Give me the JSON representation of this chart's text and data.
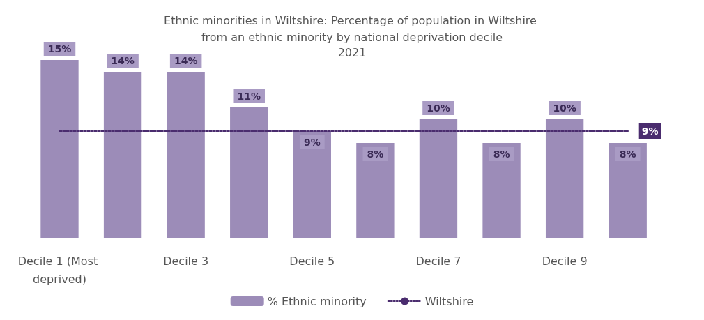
{
  "chart_data": {
    "type": "bar",
    "title": "Ethnic minorities in Wiltshire: Percentage of population in Wiltshire from an ethnic minority by national deprivation decile",
    "subtitle": "2021",
    "categories": [
      "Decile 1 (Most deprived)",
      null,
      "Decile 3",
      null,
      "Decile 5",
      null,
      "Decile 7",
      null,
      "Decile 9",
      null
    ],
    "series": [
      {
        "name": "% Ethnic minority",
        "color": "#9c8cb8",
        "values": [
          15,
          14,
          14,
          11,
          9,
          8,
          10,
          8,
          10,
          8
        ],
        "value_labels": [
          "15%",
          "14%",
          "14%",
          "11%",
          "9%",
          "8%",
          "10%",
          "8%",
          "10%",
          "8%"
        ]
      },
      {
        "name": "Wiltshire",
        "type": "line",
        "color": "#4a2c6e",
        "line_style": "dotted",
        "marker": "none",
        "values": [
          9,
          9,
          9,
          9,
          9,
          9,
          9,
          9,
          9,
          9
        ],
        "value_labels": [
          null,
          null,
          null,
          null,
          null,
          null,
          null,
          null,
          null,
          "9%"
        ]
      }
    ],
    "grid": false,
    "legend": "bottom"
  }
}
